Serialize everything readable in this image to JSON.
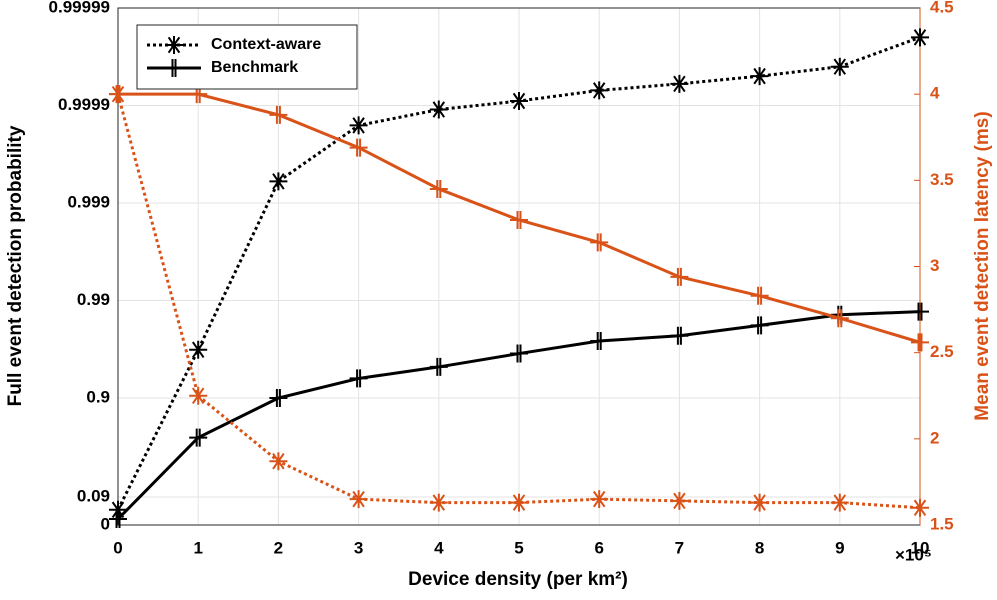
{
  "chart_data": {
    "type": "line",
    "x_label": "Device density (per km²)",
    "x_multiplier": "×10⁵",
    "y_label": "Full event detection probability",
    "y2_label": "Mean event detection latency (ms)",
    "yscale": "log-complement",
    "grid": true,
    "legend": "upper left",
    "xlim": [
      0,
      10
    ],
    "xticks": [
      0,
      1,
      2,
      3,
      4,
      5,
      6,
      7,
      8,
      9,
      10
    ],
    "ylim": [
      0,
      0.99999
    ],
    "yticks": [
      0,
      0.09,
      0.9,
      0.99,
      0.999,
      0.9999,
      0.99999
    ],
    "y2lim": [
      1.5,
      4.5
    ],
    "y2ticks": [
      1.5,
      2,
      2.5,
      3,
      3.5,
      4,
      4.5
    ],
    "y2color": "#d95319",
    "x": [
      0,
      1,
      2,
      3,
      4,
      5,
      6,
      7,
      8,
      9,
      10
    ],
    "series": [
      {
        "name": "Context-aware",
        "color": "#000000",
        "dash": true,
        "marker": "asterisk",
        "axis": "y",
        "values": [
          0.05,
          0.968,
          0.9994,
          0.99984,
          0.99989,
          0.99991,
          0.99993,
          0.99994,
          0.99995,
          0.99996,
          0.99998
        ]
      },
      {
        "name": "Benchmark",
        "color": "#000000",
        "dash": false,
        "marker": "plus",
        "axis": "y",
        "values": [
          0.02,
          0.758,
          0.9,
          0.937,
          0.952,
          0.965,
          0.974,
          0.977,
          0.982,
          0.986,
          0.987
        ]
      },
      {
        "color": "#d95319",
        "dash": true,
        "marker": "asterisk",
        "axis": "y2",
        "values": [
          4.0,
          2.25,
          1.87,
          1.65,
          1.63,
          1.63,
          1.65,
          1.64,
          1.63,
          1.63,
          1.6
        ]
      },
      {
        "color": "#d95319",
        "dash": false,
        "marker": "plus",
        "axis": "y2",
        "values": [
          4.0,
          4.0,
          3.88,
          3.69,
          3.45,
          3.27,
          3.14,
          2.94,
          2.83,
          2.7,
          2.56
        ]
      }
    ]
  }
}
